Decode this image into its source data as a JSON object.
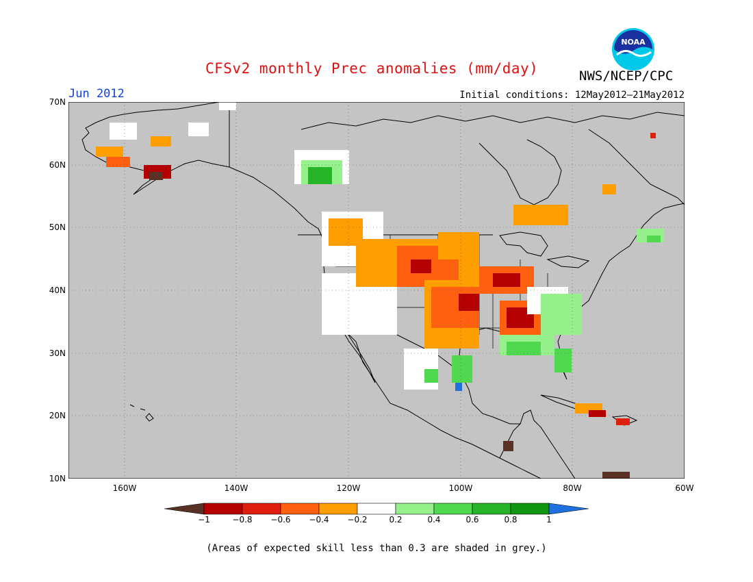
{
  "header": {
    "title": "CFSv2 monthly Prec anomalies (mm/day)",
    "agency": "NWS/NCEP/CPC",
    "logo_text": "NOAA",
    "month": "Jun 2012",
    "initial_conditions": "Initial conditions: 12May2012–21May2012"
  },
  "map": {
    "region": "North America",
    "lat_range": [
      10,
      70
    ],
    "lon_range": [
      -170,
      -60
    ],
    "lat_ticks": [
      "70N",
      "60N",
      "50N",
      "40N",
      "30N",
      "20N",
      "10N"
    ],
    "lon_ticks": [
      "160W",
      "140W",
      "120W",
      "100W",
      "80W",
      "60W"
    ],
    "ocean_color": "#c4c4c4",
    "coastline_color": "#000000"
  },
  "legend": {
    "labels": [
      "−1",
      "−0.8",
      "−0.6",
      "−0.4",
      "−0.2",
      "0.2",
      "0.4",
      "0.6",
      "0.8",
      "1"
    ],
    "colors": [
      "#5a3225",
      "#b40000",
      "#e0200e",
      "#ff6010",
      "#ff9e00",
      "#ffffff",
      "#96f08c",
      "#50d850",
      "#28b428",
      "#109610",
      "#2070e0"
    ]
  },
  "footnote": "(Areas of expected skill less than 0.3 are shaded in grey.)"
}
